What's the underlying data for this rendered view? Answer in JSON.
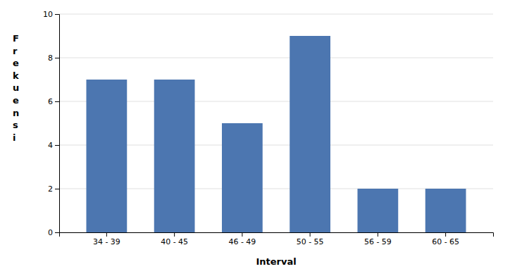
{
  "chart_data": {
    "type": "bar",
    "xlabel": "Interval",
    "ylabel": "F\nr\ne\nk\nu\ne\nn\ns\ni",
    "categories": [
      "34 - 39",
      "40 - 45",
      "46 - 49",
      "50 - 55",
      "56 - 59",
      "60 - 65"
    ],
    "values": [
      7,
      7,
      5,
      9,
      2,
      2
    ],
    "color": "#4c76b0",
    "ylim": [
      0,
      10
    ],
    "yticks": [
      0,
      2,
      4,
      6,
      8,
      10
    ],
    "grid": true
  }
}
